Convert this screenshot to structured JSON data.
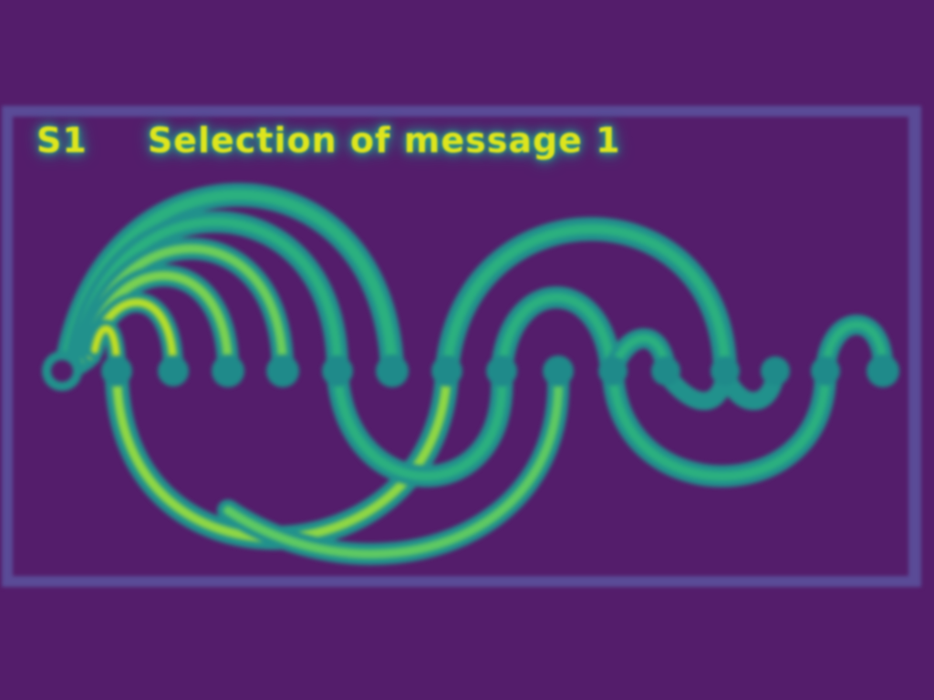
{
  "heading": {
    "step": "S1",
    "title": "Selection of message 1"
  },
  "colors": {
    "background": "#541d6b",
    "frame": "#5a4b97",
    "arc_outer": "#21918c",
    "arc_inner": "#2bb07f",
    "arc_highlight": "#c6e020",
    "node": "#1f8a8a",
    "text": "#dde41e"
  },
  "diagram": {
    "node_count": 16,
    "description_icon": "arc-diagram"
  }
}
